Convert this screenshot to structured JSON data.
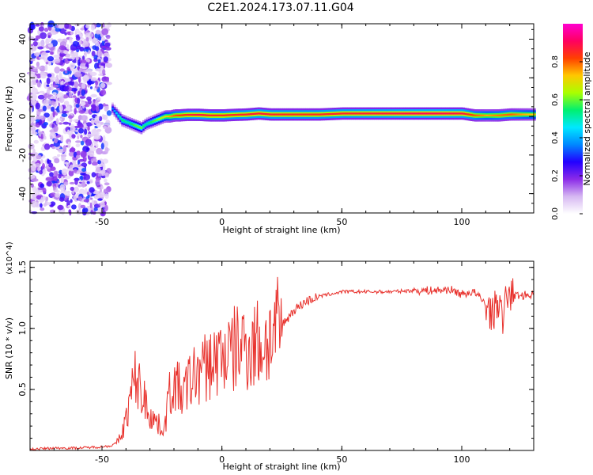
{
  "title": "C2E1.2024.173.07.11.G04",
  "chart_data": [
    {
      "type": "heatmap",
      "xlabel": "Height of straight line (km)",
      "ylabel": "Frequency (Hz)",
      "xlim": [
        -80,
        130
      ],
      "ylim": [
        -50,
        48
      ],
      "xticks": [
        -50,
        0,
        50,
        100
      ],
      "yticks": [
        -40,
        -20,
        0,
        20,
        40
      ],
      "colorbar": {
        "label": "Normalized spectral amplitude",
        "range": [
          0.0,
          1.0
        ],
        "ticks": [
          0.0,
          0.2,
          0.4,
          0.6,
          0.8
        ],
        "tick_labels": [
          "0.0",
          "0.2",
          "0.4",
          "0.6",
          "0.8"
        ],
        "colormap": [
          "#ffffff",
          "#d6b8f2",
          "#8b2be8",
          "#2200ff",
          "#0088ff",
          "#00e8ff",
          "#00f070",
          "#aaff00",
          "#ffc800",
          "#ff4000",
          "#ff0060",
          "#ff00d0"
        ]
      },
      "noise_region_x": [
        -80,
        -47
      ],
      "trace": {
        "x": [
          -46,
          -44,
          -42,
          -40,
          -38,
          -36,
          -34,
          -32,
          -30,
          -28,
          -26,
          -24,
          -22,
          -20,
          -18,
          -15,
          -10,
          -5,
          0,
          5,
          10,
          15,
          20,
          30,
          40,
          50,
          60,
          70,
          80,
          90,
          100,
          105,
          110,
          115,
          120,
          125,
          130
        ],
        "y": [
          4,
          1,
          -2,
          -3,
          -4,
          -5,
          -6,
          -4,
          -3,
          -2,
          -1,
          0,
          0,
          0.5,
          0.5,
          0.8,
          0.8,
          0.5,
          0.5,
          0.8,
          1,
          1.5,
          1,
          1,
          1,
          1.5,
          1.5,
          1.5,
          1.5,
          1.5,
          1.5,
          0.5,
          0.5,
          0.5,
          1,
          1,
          1
        ],
        "amplitude": [
          0.35,
          0.45,
          0.55,
          0.5,
          0.55,
          0.6,
          0.6,
          0.5,
          0.55,
          0.6,
          0.65,
          0.7,
          0.75,
          0.8,
          0.82,
          0.85,
          0.88,
          0.85,
          0.85,
          0.85,
          0.86,
          0.87,
          0.86,
          0.85,
          0.85,
          0.86,
          0.87,
          0.88,
          0.9,
          0.9,
          0.88,
          0.8,
          0.75,
          0.78,
          0.8,
          0.75,
          0.72
        ]
      }
    },
    {
      "type": "line",
      "xlabel": "Height of straight line (km)",
      "ylabel": "SNR (10 * v/v)",
      "y_scale_label": "(x10^4)",
      "xlim": [
        -80,
        130
      ],
      "ylim": [
        0,
        1.55
      ],
      "xticks": [
        -50,
        0,
        50,
        100
      ],
      "yticks": [
        0.5,
        1.0,
        1.5
      ],
      "ytick_labels": [
        "0.5",
        "1.0",
        "1.5"
      ],
      "color": "#e8312c",
      "series": [
        {
          "name": "SNR",
          "x": [
            -80,
            -70,
            -60,
            -50,
            -46,
            -44,
            -42,
            -40,
            -38,
            -36,
            -34,
            -32,
            -30,
            -28,
            -26,
            -24,
            -22,
            -20,
            -18,
            -16,
            -14,
            -12,
            -10,
            -8,
            -6,
            -4,
            -2,
            0,
            2,
            4,
            6,
            8,
            10,
            12,
            14,
            16,
            18,
            20,
            22,
            24,
            26,
            28,
            30,
            35,
            40,
            45,
            50,
            60,
            70,
            80,
            85,
            90,
            95,
            100,
            105,
            110,
            113,
            115,
            117,
            119,
            121,
            125,
            130
          ],
          "y": [
            0.01,
            0.02,
            0.02,
            0.03,
            0.04,
            0.06,
            0.12,
            0.25,
            0.45,
            0.6,
            0.5,
            0.4,
            0.3,
            0.25,
            0.2,
            0.18,
            0.45,
            0.55,
            0.5,
            0.45,
            0.55,
            0.6,
            0.65,
            0.65,
            0.7,
            0.72,
            0.75,
            0.78,
            0.8,
            0.78,
            0.85,
            0.85,
            0.88,
            0.82,
            0.9,
            0.85,
            0.88,
            0.92,
            0.95,
            1.0,
            1.05,
            1.1,
            1.15,
            1.22,
            1.26,
            1.28,
            1.3,
            1.3,
            1.3,
            1.31,
            1.31,
            1.31,
            1.32,
            1.28,
            1.3,
            1.2,
            1.1,
            1.25,
            1.05,
            1.3,
            1.27,
            1.27,
            1.28
          ]
        }
      ]
    }
  ]
}
